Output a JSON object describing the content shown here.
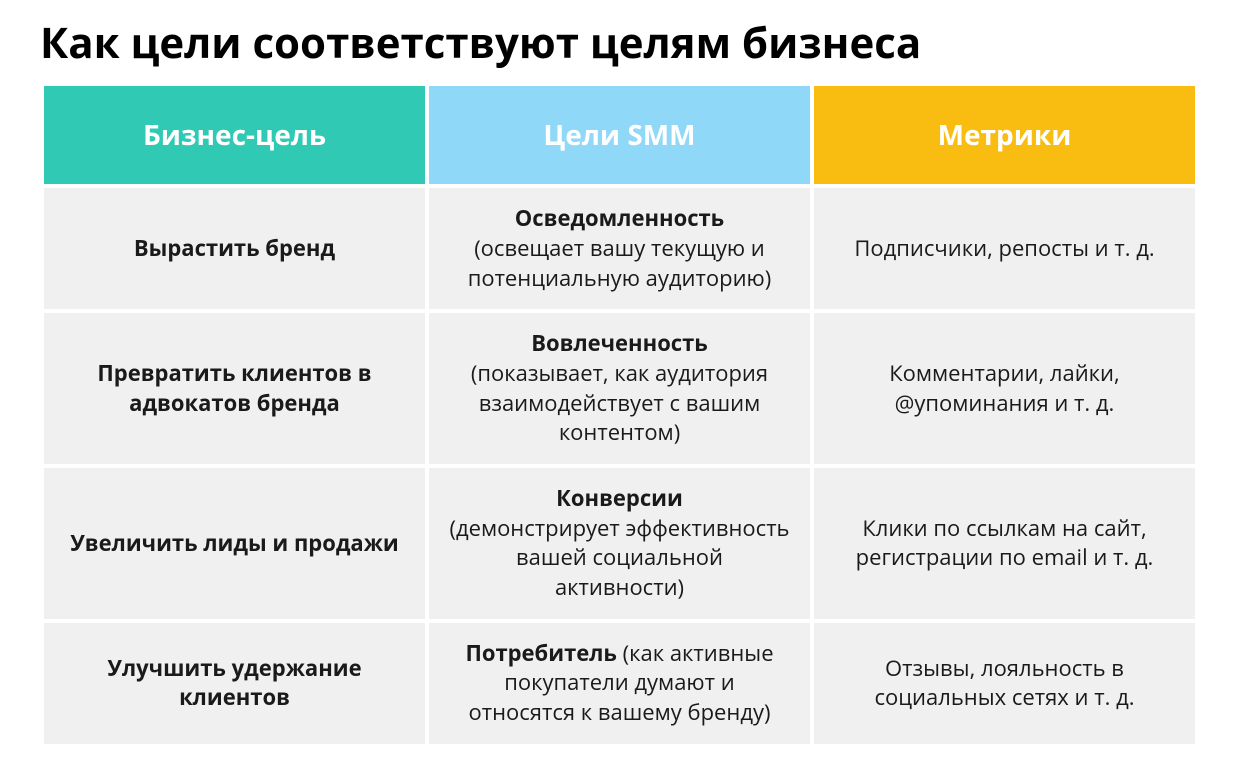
{
  "title": "Как цели соответствуют целям бизнеса",
  "table": {
    "type": "table",
    "header_colors": [
      "#2fc9b4",
      "#8fd8f7",
      "#f9bd11"
    ],
    "header_text_color": "#ffffff",
    "row_bg_color": "#f0f0f0",
    "body_text_color": "#1a1a1a",
    "title_fontsize": 42,
    "header_fontsize": 28,
    "cell_fontsize": 22,
    "columns": [
      {
        "label": "Бизнес-цель"
      },
      {
        "label": "Цели SMM"
      },
      {
        "label": "Метрики"
      }
    ],
    "rows": [
      {
        "business": "Вырастить бренд",
        "smm_bold": "Осведомленность",
        "smm_detail": "(освещает вашу текущую и потенциальную аудиторию)",
        "metrics": "Подписчики, репосты и т. д."
      },
      {
        "business": "Превратить клиентов в адвокатов бренда",
        "smm_bold": "Вовлеченность",
        "smm_detail": "(показывает, как аудитория взаимодействует с вашим контентом)",
        "metrics": "Комментарии, лайки, @упоминания и т. д."
      },
      {
        "business": "Увеличить лиды и продажи",
        "smm_bold": "Конверсии",
        "smm_detail": "(демонстрирует эффективность вашей социальной активности)",
        "metrics": "Клики по ссылкам на сайт, регистрации по email и т. д."
      },
      {
        "business": "Улучшить удержание клиентов",
        "smm_bold": "Потребитель",
        "smm_detail": "(как активные покупатели думают и относятся к вашему бренду)",
        "metrics": "Отзывы, лояльность в социальных сетях и т. д."
      }
    ]
  }
}
